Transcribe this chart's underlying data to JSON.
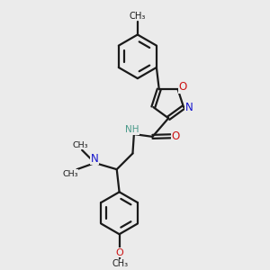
{
  "bg_color": "#ebebeb",
  "bond_color": "#1a1a1a",
  "N_color": "#1414cc",
  "O_color": "#cc1414",
  "NH_color": "#4a9a8a",
  "figsize": [
    3.0,
    3.0
  ],
  "dpi": 100,
  "xlim": [
    0,
    10
  ],
  "ylim": [
    0,
    10
  ]
}
